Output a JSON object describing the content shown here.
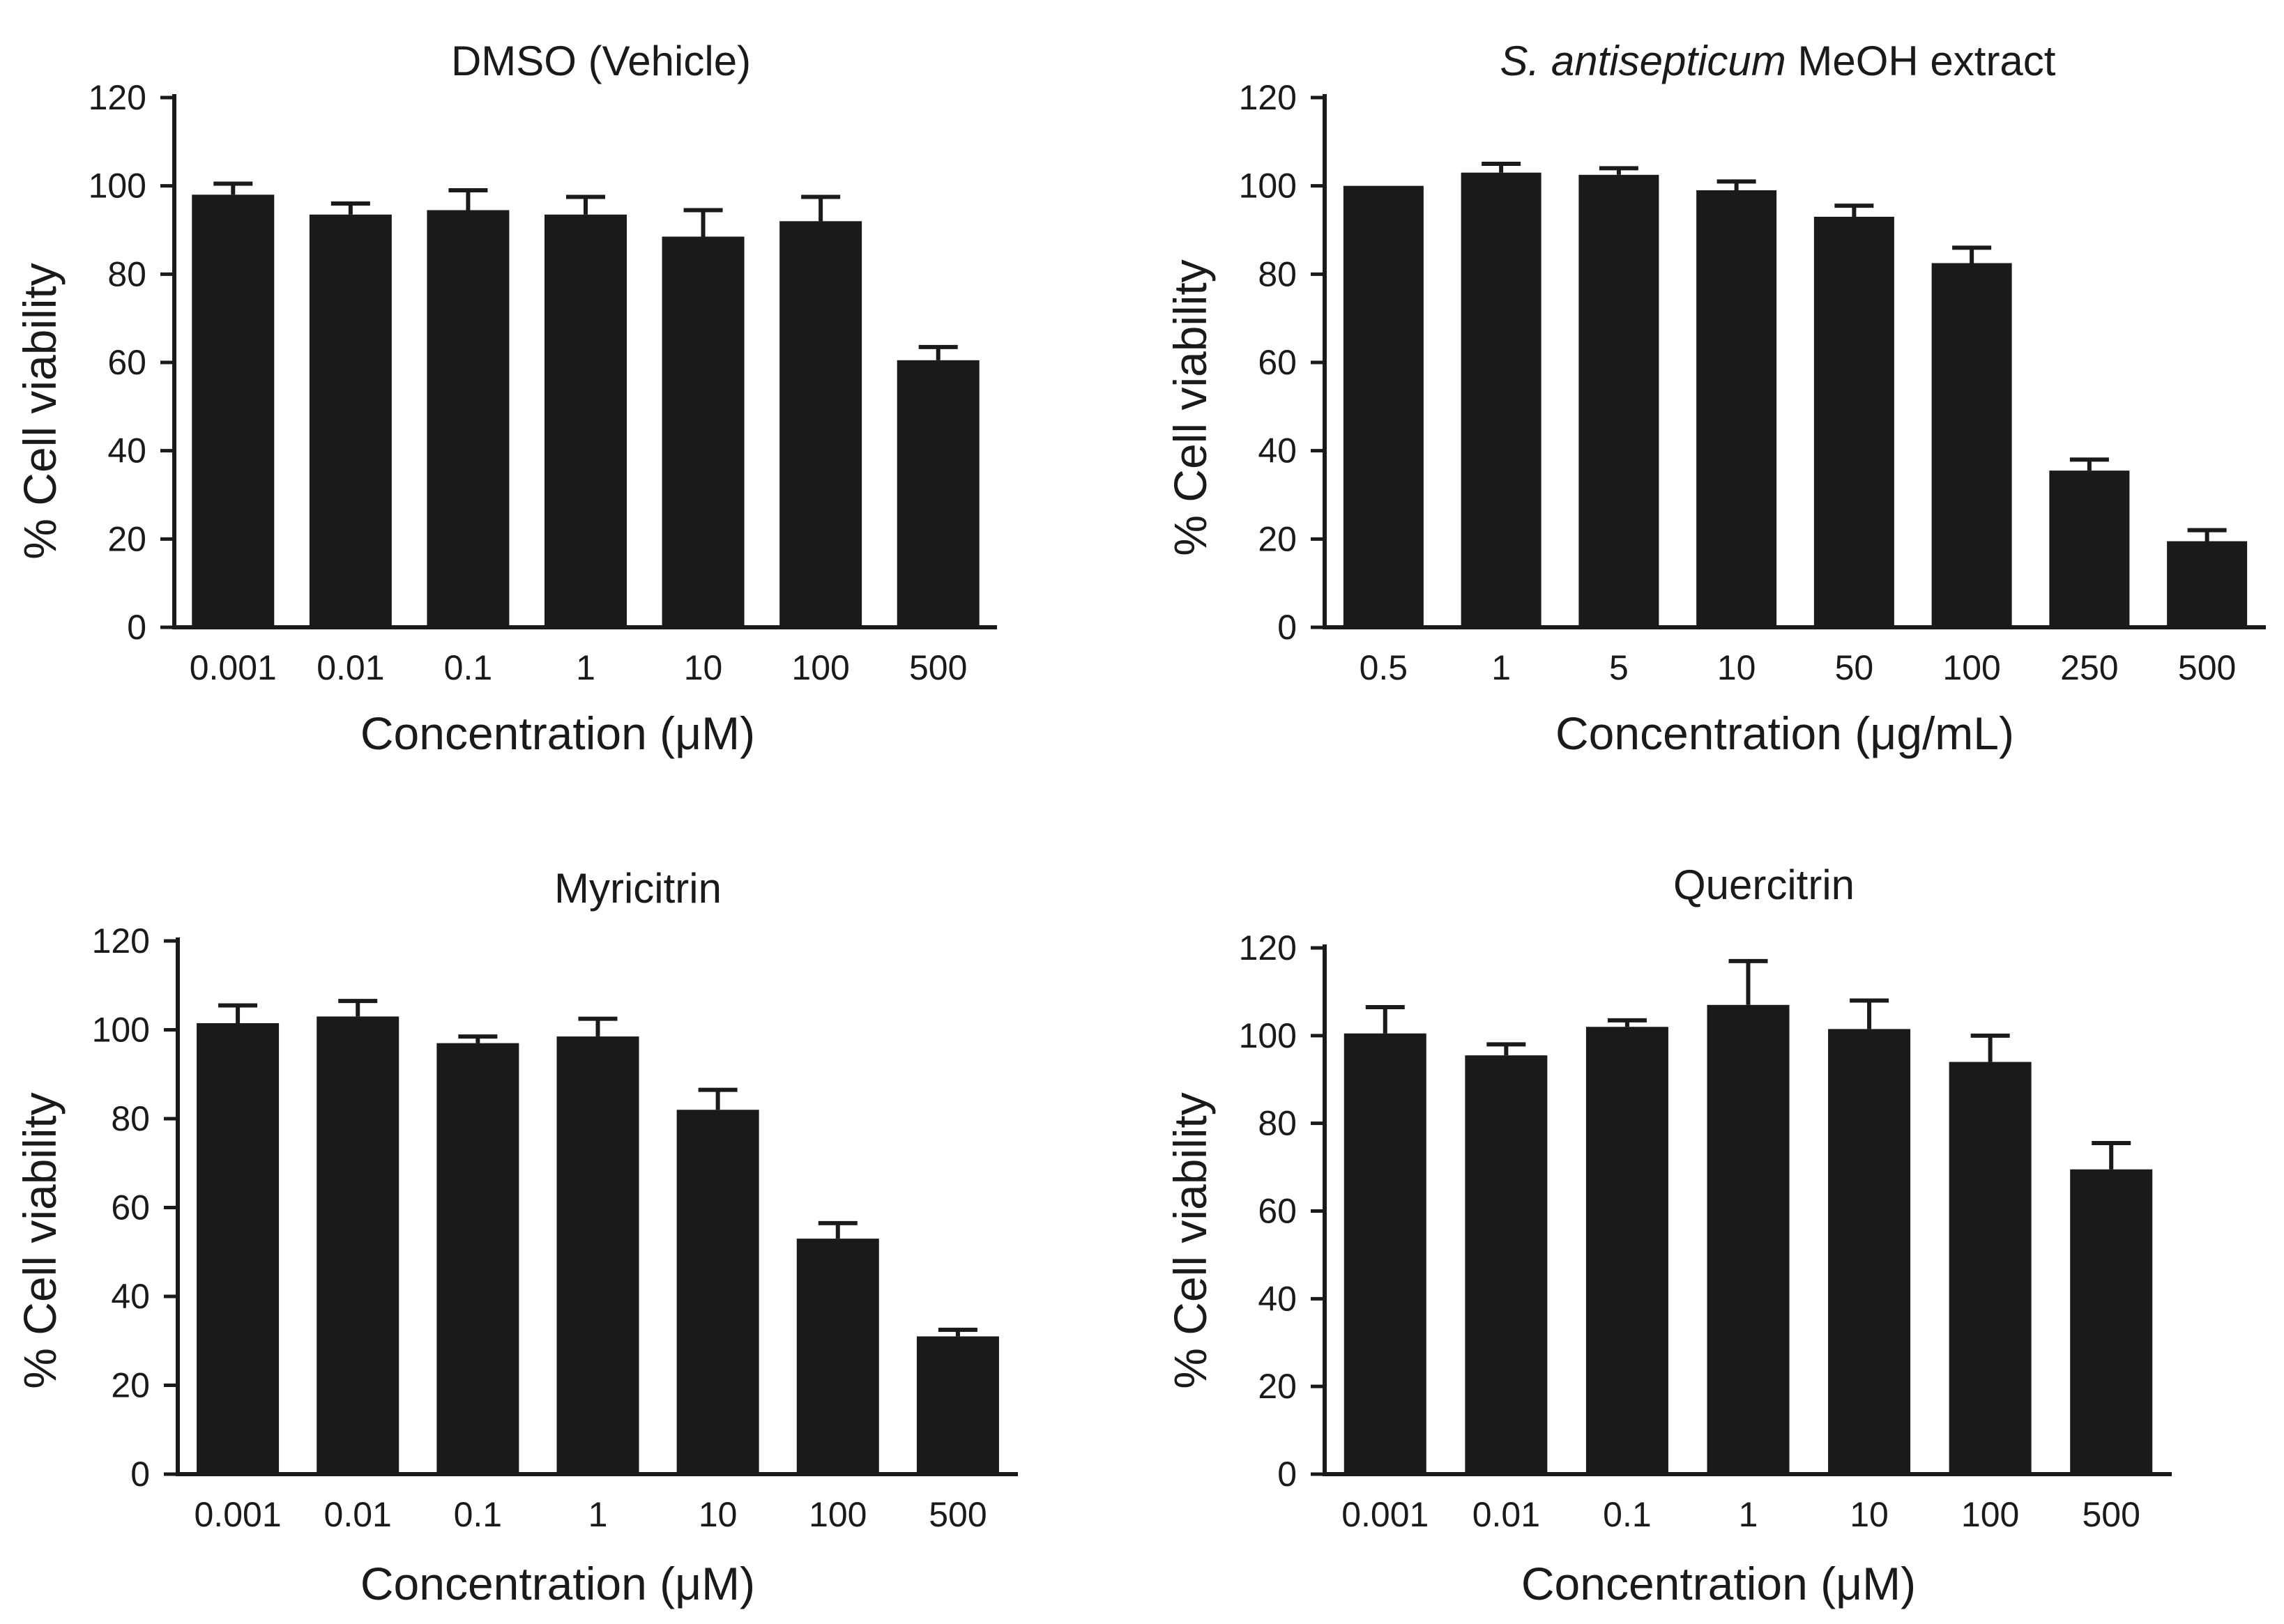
{
  "chart_data": [
    {
      "type": "bar",
      "title": "DMSO (Vehicle)",
      "xlabel": "Concentration (μM)",
      "ylabel": "% Cell viability",
      "ylim": [
        0,
        120
      ],
      "yticks": [
        "0",
        "20",
        "40",
        "60",
        "80",
        "100",
        "120"
      ],
      "categories": [
        "0.001",
        "0.01",
        "0.1",
        "1",
        "10",
        "100",
        "500"
      ],
      "values": [
        98,
        93.5,
        94.5,
        93.5,
        88.5,
        92,
        60.5
      ],
      "errors": [
        2.5,
        2.5,
        4.5,
        4,
        6,
        5.5,
        3
      ]
    },
    {
      "type": "bar",
      "title_italic": "S. antisepticum",
      "title_rest": " MeOH extract",
      "xlabel": "Concentration (μg/mL)",
      "ylabel": "% Cell viability",
      "ylim": [
        0,
        120
      ],
      "yticks": [
        "0",
        "20",
        "40",
        "60",
        "80",
        "100",
        "120"
      ],
      "categories": [
        "0.5",
        "1",
        "5",
        "10",
        "50",
        "100",
        "250",
        "500"
      ],
      "values": [
        100,
        103,
        102.5,
        99,
        93,
        82.5,
        35.5,
        19.5
      ],
      "errors": [
        0,
        2,
        1.5,
        2,
        2.5,
        3.5,
        2.5,
        2.5
      ]
    },
    {
      "type": "bar",
      "title": "Myricitrin",
      "xlabel": "Concentration (μM)",
      "ylabel": "% Cell viability",
      "ylim": [
        0,
        120
      ],
      "yticks": [
        "0",
        "20",
        "40",
        "60",
        "80",
        "100",
        "120"
      ],
      "categories": [
        "0.001",
        "0.01",
        "0.1",
        "1",
        "10",
        "100",
        "500"
      ],
      "values": [
        101.5,
        103,
        97,
        98.5,
        82,
        53,
        31
      ],
      "errors": [
        4,
        3.5,
        1.5,
        4,
        4.5,
        3.5,
        1.5
      ]
    },
    {
      "type": "bar",
      "title": "Quercitrin",
      "xlabel": "Concentration (μM)",
      "ylabel": "% Cell viability",
      "ylim": [
        0,
        120
      ],
      "yticks": [
        "0",
        "20",
        "40",
        "60",
        "80",
        "100",
        "120"
      ],
      "categories": [
        "0.001",
        "0.01",
        "0.1",
        "1",
        "10",
        "100",
        "500"
      ],
      "values": [
        100.5,
        95.5,
        102,
        107,
        101.5,
        94,
        69.5
      ],
      "errors": [
        6,
        2.5,
        1.5,
        10,
        6.5,
        6,
        6
      ]
    }
  ]
}
